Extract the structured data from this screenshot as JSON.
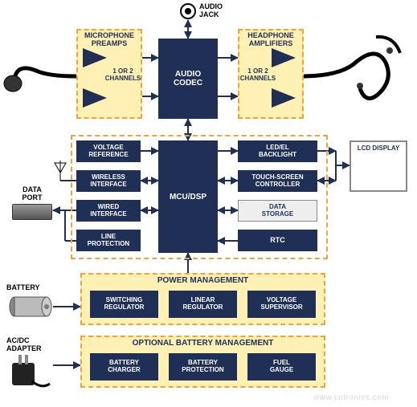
{
  "colors": {
    "navy": "#1f2f56",
    "white": "#ffffff",
    "cream": "#fff0b3",
    "orange": "#f3a336",
    "gray_border": "#8a8a8a",
    "light_gray": "#eeeeee",
    "black": "#000000",
    "arrow": "#1f2f56",
    "watermark": "#d7d7d7"
  },
  "fonts": {
    "block": 9,
    "side_label": 9,
    "header": 10,
    "section_header": 10
  },
  "top": {
    "audio_jack_label": "AUDIO\nJACK",
    "mic_preamps": "MICROPHONE\nPREAMPS",
    "headphone_amps": "HEADPHONE\nAMPLIFIERS",
    "channels": "1 OR 2\nCHANNELS",
    "audio_codec": "AUDIO\nCODEC"
  },
  "mid": {
    "voltage_ref": "VOLTAGE\nREFERENCE",
    "wireless_if": "WIRELESS\nINTERFACE",
    "wired_if": "WIRED\nINTERFACE",
    "line_prot": "LINE\nPROTECTION",
    "mcu": "MCU/DSP",
    "led_bl": "LED/EL\nBACKLIGHT",
    "ts_ctrl": "TOUCH-SCREEN\nCONTROLLER",
    "data_storage": "DATA\nSTORAGE",
    "rtc": "RTC",
    "lcd": "LCD DISPLAY"
  },
  "side": {
    "data_port": "DATA\nPORT",
    "battery": "BATTERY",
    "acdc": "AC/DC\nADAPTER"
  },
  "pm": {
    "header": "POWER MANAGEMENT",
    "switching": "SWITCHING\nREGULATOR",
    "linear": "LINEAR\nREGULATOR",
    "voltage_sup": "VOLTAGE\nSUPERVISOR"
  },
  "obm": {
    "header": "OPTIONAL BATTERY MANAGEMENT",
    "charger": "BATTERY\nCHARGER",
    "protection": "BATTERY\nPROTECTION",
    "fuel": "FUEL\nGAUGE"
  },
  "watermark": "www.cntronics.com"
}
